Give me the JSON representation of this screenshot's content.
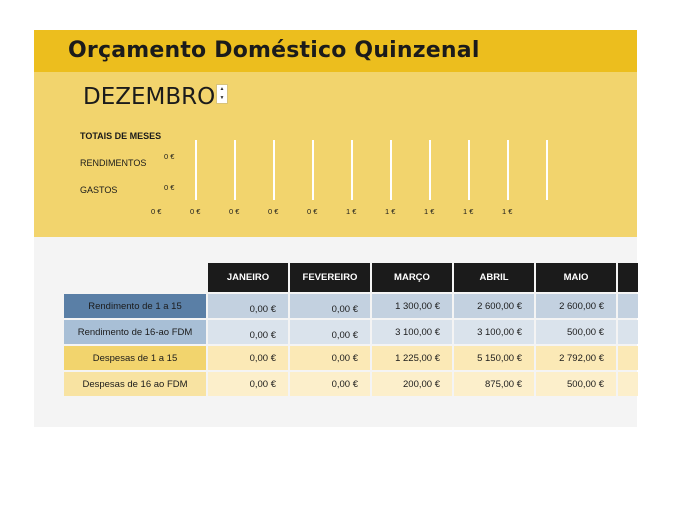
{
  "title": "Orçamento Doméstico Quinzenal",
  "month_selector": {
    "value": "DEZEMBRO",
    "spinner_up": "▲",
    "spinner_down": "▼"
  },
  "summary": {
    "heading": "TOTAIS DE MESES",
    "rows": [
      {
        "label": "RENDIMENTOS",
        "value": "0 €"
      },
      {
        "label": "GASTOS",
        "value": "0 €"
      }
    ],
    "axis_ticks": [
      "0 €",
      "0 €",
      "0 €",
      "0 €",
      "0 €",
      "1 €",
      "1 €",
      "1 €",
      "1 €",
      "1 €"
    ]
  },
  "table": {
    "headers": [
      "JANEIRO",
      "FEVEREIRO",
      "MARÇO",
      "ABRIL",
      "MAIO"
    ],
    "rows": [
      {
        "label": "Rendimento de 1 a 15",
        "values": [
          "0,00 €",
          "0,00 €",
          "1 300,00 €",
          "2 600,00 €",
          "2 600,00 €"
        ]
      },
      {
        "label": "Rendimento de 16-ao FDM",
        "values": [
          "0,00 €",
          "0,00 €",
          "3 100,00 €",
          "3 100,00 €",
          "500,00 €"
        ]
      },
      {
        "label": "Despesas de 1 a 15",
        "values": [
          "0,00 €",
          "0,00 €",
          "1 225,00 €",
          "5 150,00 €",
          "2 792,00 €"
        ]
      },
      {
        "label": "Despesas de 16 ao FDM",
        "values": [
          "0,00 €",
          "0,00 €",
          "200,00 €",
          "875,00 €",
          "500,00 €"
        ]
      }
    ]
  },
  "colors": {
    "title_bar": "#ecbe1e",
    "summary_bg": "#f2d46d",
    "header_bg": "#1b1b1b",
    "income_label": "#5a7fa6",
    "expense_label": "#f2d46d"
  }
}
